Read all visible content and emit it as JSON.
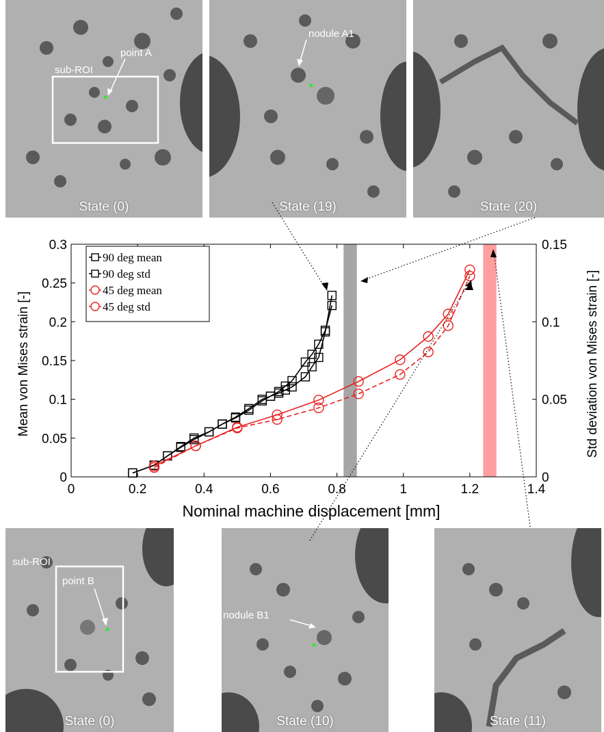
{
  "panels_top": [
    {
      "label": "State (0)",
      "annotations": [
        "point A",
        "sub-ROI"
      ]
    },
    {
      "label": "State (19)",
      "annotations": [
        "nodule A1"
      ]
    },
    {
      "label": "State (20)",
      "annotations": []
    }
  ],
  "panels_bottom": [
    {
      "label": "State (0)",
      "annotations": [
        "sub-ROI",
        "point B"
      ]
    },
    {
      "label": "State (10)",
      "annotations": [
        "nodule B1"
      ]
    },
    {
      "label": "State (11)",
      "annotations": []
    }
  ],
  "colors": {
    "black_series": "#000000",
    "red_series": "#e8201f",
    "gray_band": "#a6a6a6",
    "red_band": "#ff9e9e",
    "point_marker": "#2ee82e"
  },
  "chart_data": {
    "type": "line",
    "xlabel": "Nominal machine displacement [mm]",
    "ylabel": "Mean von Mises strain [-]",
    "y2label": "Std deviation von Mises strain [-]",
    "xlim": [
      0,
      1.4
    ],
    "ylim": [
      0,
      0.3
    ],
    "y2lim": [
      0,
      0.15
    ],
    "xticks": [
      "0",
      "0.2",
      "0.4",
      "0.6",
      "0.8",
      "1",
      "1.2",
      "1.4"
    ],
    "yticks": [
      "0",
      "0.05",
      "0.1",
      "0.15",
      "0.2",
      "0.25",
      "0.3"
    ],
    "y2ticks": [
      "0",
      "0.05",
      "0.1",
      "0.15"
    ],
    "legend_position": "top-left",
    "series": [
      {
        "name": "90 deg mean",
        "axis": "left",
        "color": "#000000",
        "dash": "solid",
        "marker": "square",
        "x": [
          0.185,
          0.25,
          0.29,
          0.33,
          0.37,
          0.415,
          0.455,
          0.495,
          0.535,
          0.575,
          0.6,
          0.625,
          0.645,
          0.665,
          0.705,
          0.725,
          0.745,
          0.765,
          0.785
        ],
        "y": [
          0.005,
          0.015,
          0.027,
          0.039,
          0.05,
          0.058,
          0.068,
          0.077,
          0.088,
          0.1,
          0.104,
          0.11,
          0.117,
          0.124,
          0.148,
          0.158,
          0.171,
          0.189,
          0.221
        ]
      },
      {
        "name": "90 deg std",
        "axis": "right",
        "color": "#000000",
        "dash": "solid",
        "marker": "square",
        "x": [
          0.185,
          0.25,
          0.29,
          0.33,
          0.37,
          0.415,
          0.455,
          0.495,
          0.535,
          0.575,
          0.6,
          0.625,
          0.645,
          0.665,
          0.705,
          0.725,
          0.745,
          0.765,
          0.785
        ],
        "y": [
          0.0025,
          0.0075,
          0.0135,
          0.019,
          0.024,
          0.029,
          0.034,
          0.038,
          0.043,
          0.049,
          0.052,
          0.054,
          0.056,
          0.058,
          0.0645,
          0.071,
          0.077,
          0.0935,
          0.117
        ]
      },
      {
        "name": "45 deg mean",
        "axis": "left",
        "color": "#e8201f",
        "dash": "solid",
        "marker": "circle",
        "x": [
          0.25,
          0.375,
          0.5,
          0.62,
          0.745,
          0.865,
          0.99,
          1.075,
          1.135,
          1.2
        ],
        "y": [
          0.014,
          0.04,
          0.064,
          0.08,
          0.099,
          0.123,
          0.151,
          0.181,
          0.21,
          0.267
        ]
      },
      {
        "name": "45 deg std",
        "axis": "right",
        "color": "#e8201f",
        "dash": "dashed",
        "marker": "circle",
        "x": [
          0.25,
          0.375,
          0.5,
          0.62,
          0.745,
          0.865,
          0.99,
          1.075,
          1.135,
          1.2
        ],
        "y": [
          0.006,
          0.02,
          0.0315,
          0.037,
          0.0445,
          0.0535,
          0.066,
          0.0805,
          0.0975,
          0.1295
        ]
      }
    ],
    "bands": [
      {
        "x0": 0.82,
        "x1": 0.86,
        "color": "#a6a6a6"
      },
      {
        "x0": 1.24,
        "x1": 1.28,
        "color": "#ff9e9e"
      }
    ]
  }
}
